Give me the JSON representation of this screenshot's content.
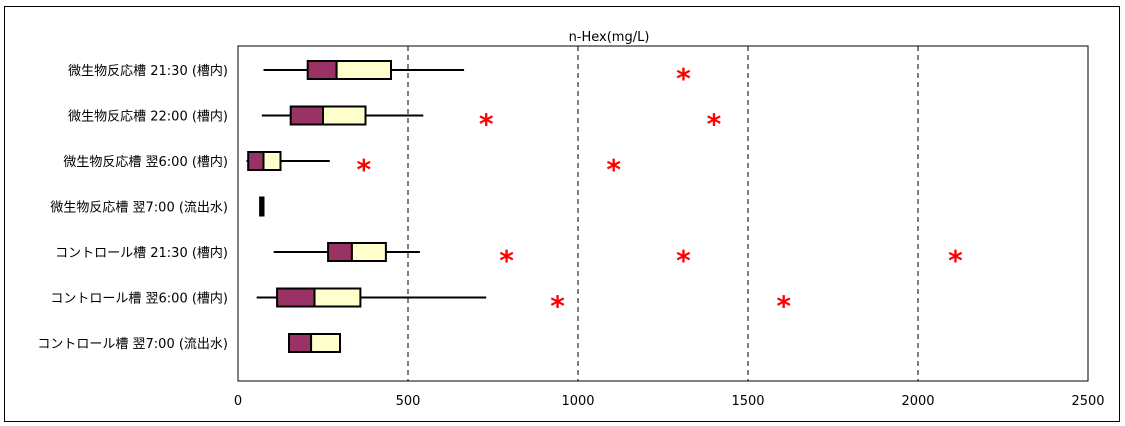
{
  "chart_data": {
    "type": "boxplot",
    "title": "n-Hex(mg/L)",
    "orientation": "horizontal",
    "xlim": [
      0,
      2500
    ],
    "x_ticks": [
      "0",
      "500",
      "1000",
      "1500",
      "2000",
      "2500"
    ],
    "grid": "dashed vertical at x ticks",
    "colors": {
      "lower_box": "#993366",
      "upper_box": "#ffffcc",
      "outlier": "#ff0000",
      "grid": "#000000"
    },
    "categories": [
      "微生物反応槽 21:30 (槽内)",
      "微生物反応槽 22:00 (槽内)",
      "微生物反応槽 翌6:00 (槽内)",
      "微生物反応槽 翌7:00 (流出水)",
      "コントロール槽 21:30 (槽内)",
      "コントロール槽 翌6:00 (槽内)",
      "コントロール槽 翌7:00 (流出水)"
    ],
    "boxes": [
      {
        "min": 75,
        "q1": 205,
        "median": 290,
        "q3": 450,
        "max": 665,
        "outliers": [
          1310
        ]
      },
      {
        "min": 70,
        "q1": 155,
        "median": 250,
        "q3": 375,
        "max": 545,
        "outliers": [
          730,
          1400
        ]
      },
      {
        "min": 25,
        "q1": 30,
        "median": 75,
        "q3": 125,
        "max": 270,
        "outliers": [
          370,
          1105
        ]
      },
      {
        "min": 65,
        "q1": 65,
        "median": 70,
        "q3": 75,
        "max": 75,
        "outliers": []
      },
      {
        "min": 105,
        "q1": 265,
        "median": 335,
        "q3": 435,
        "max": 535,
        "outliers": [
          790,
          1310,
          2110
        ]
      },
      {
        "min": 55,
        "q1": 115,
        "median": 225,
        "q3": 360,
        "max": 730,
        "outliers": [
          940,
          1605
        ]
      },
      {
        "min": 150,
        "q1": 150,
        "median": 215,
        "q3": 300,
        "max": 300,
        "outliers": []
      }
    ]
  }
}
